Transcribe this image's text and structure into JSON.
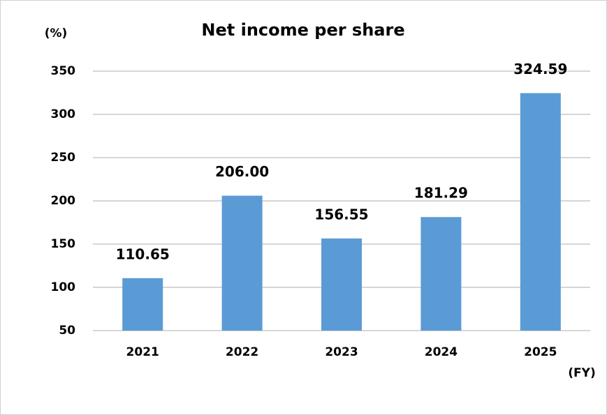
{
  "chart_data": {
    "type": "bar",
    "title": "Net income per share",
    "y_label": "(%)",
    "x_label": "(FY)",
    "categories": [
      "2021",
      "2022",
      "2023",
      "2024",
      "2025"
    ],
    "values": [
      110.65,
      206.0,
      156.55,
      181.29,
      324.59
    ],
    "value_labels": [
      "110.65",
      "206.00",
      "156.55",
      "181.29",
      "324.59"
    ],
    "color": "#5b9bd5",
    "ylim": [
      50,
      350
    ],
    "yticks": [
      50,
      100,
      150,
      200,
      250,
      300,
      350
    ],
    "grid": true
  }
}
